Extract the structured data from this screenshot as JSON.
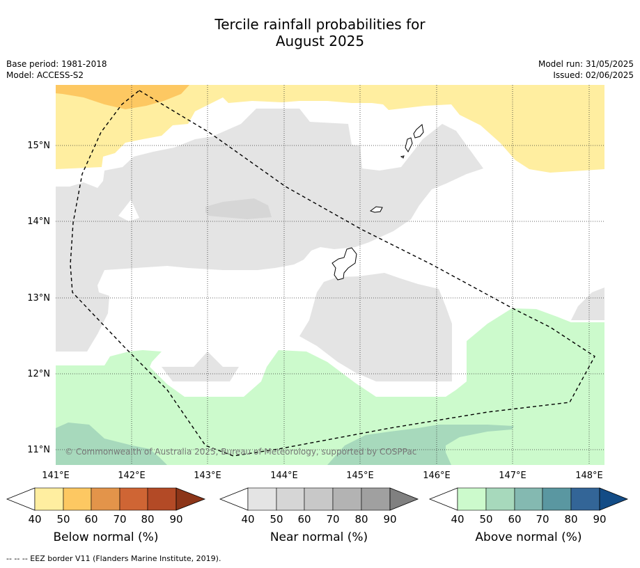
{
  "title_line1": "Tercile rainfall probabilities for",
  "title_line2": "August 2025",
  "meta": {
    "base_period": "Base period: 1981-2018",
    "model": "Model: ACCESS-S2",
    "model_run": "Model run: 31/05/2025",
    "issued": "Issued: 02/06/2025"
  },
  "map": {
    "lon_labels": [
      "141°E",
      "142°E",
      "143°E",
      "144°E",
      "145°E",
      "146°E",
      "147°E",
      "148°E"
    ],
    "lat_labels": [
      "15°N",
      "14°N",
      "13°N",
      "12°N",
      "11°N"
    ],
    "copyright": "© Commonwealth of Australia 2025, Bureau of Meteorology, supported by COSPPac"
  },
  "legends": {
    "below": {
      "title": "Below normal (%)",
      "ticks": [
        "40",
        "50",
        "60",
        "70",
        "80",
        "90"
      ],
      "colors": [
        "#ffeea0",
        "#fdc862",
        "#e3944a",
        "#cf6534",
        "#b34a26",
        "#8c3518"
      ]
    },
    "near": {
      "title": "Near normal (%)",
      "ticks": [
        "40",
        "50",
        "60",
        "70",
        "80",
        "90"
      ],
      "colors": [
        "#e4e4e4",
        "#d6d6d6",
        "#c8c8c8",
        "#b3b3b3",
        "#a0a0a0",
        "#808080"
      ]
    },
    "above": {
      "title": "Above normal (%)",
      "ticks": [
        "40",
        "50",
        "60",
        "70",
        "80",
        "90"
      ],
      "colors": [
        "#ccfacc",
        "#a7d9bc",
        "#84b9b1",
        "#5a97a1",
        "#336597",
        "#134c86"
      ]
    }
  },
  "footnote": "--  --  -- EEZ border V11 (Flanders Marine Institute, 2019)."
}
